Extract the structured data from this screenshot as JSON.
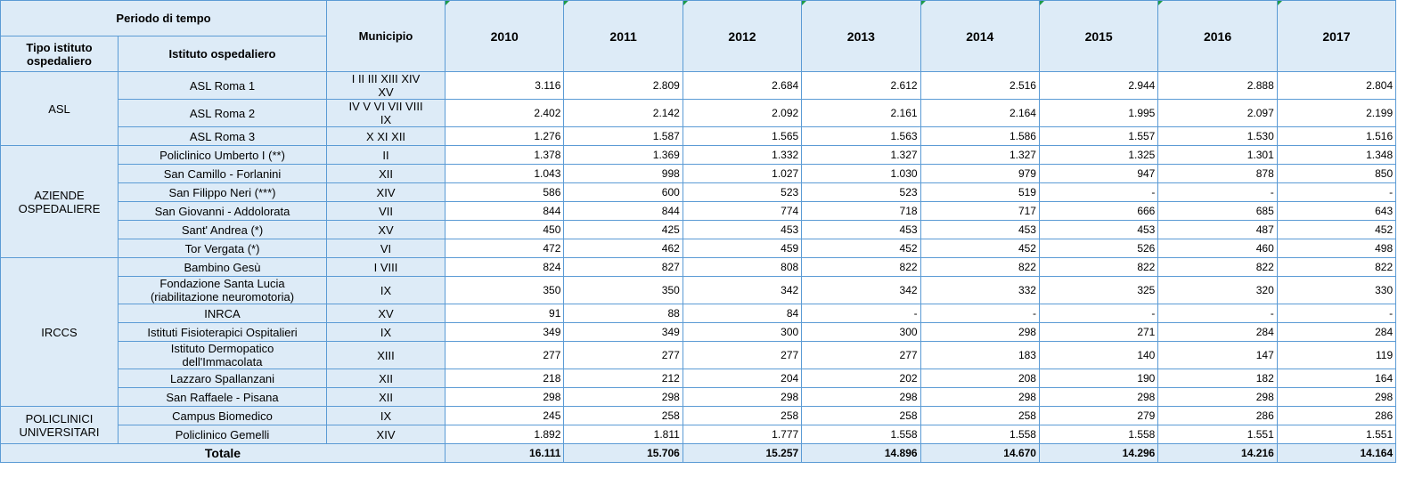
{
  "header": {
    "period": "Periodo di tempo",
    "tipo": "Tipo istituto ospedaliero",
    "istituto": "Istituto ospedaliero",
    "municipio": "Municipio",
    "years": [
      "2010",
      "2011",
      "2012",
      "2013",
      "2014",
      "2015",
      "2016",
      "2017"
    ]
  },
  "groups": [
    {
      "tipo": "ASL",
      "rows": [
        {
          "istituto": "ASL Roma 1",
          "municipio": "I II III XIII XIV XV",
          "values": [
            "3.116",
            "2.809",
            "2.684",
            "2.612",
            "2.516",
            "2.944",
            "2.888",
            "2.804"
          ]
        },
        {
          "istituto": "ASL Roma 2",
          "municipio": "IV V VI VII VIII IX",
          "values": [
            "2.402",
            "2.142",
            "2.092",
            "2.161",
            "2.164",
            "1.995",
            "2.097",
            "2.199"
          ]
        },
        {
          "istituto": "ASL Roma 3",
          "municipio": "X XI XII",
          "values": [
            "1.276",
            "1.587",
            "1.565",
            "1.563",
            "1.586",
            "1.557",
            "1.530",
            "1.516"
          ]
        }
      ]
    },
    {
      "tipo": "AZIENDE OSPEDALIERE",
      "rows": [
        {
          "istituto": "Policlinico Umberto I (**)",
          "municipio": "II",
          "values": [
            "1.378",
            "1.369",
            "1.332",
            "1.327",
            "1.327",
            "1.325",
            "1.301",
            "1.348"
          ]
        },
        {
          "istituto": "San Camillo - Forlanini",
          "municipio": "XII",
          "values": [
            "1.043",
            "998",
            "1.027",
            "1.030",
            "979",
            "947",
            "878",
            "850"
          ]
        },
        {
          "istituto": "San Filippo Neri (***)",
          "municipio": "XIV",
          "values": [
            "586",
            "600",
            "523",
            "523",
            "519",
            "-",
            "-",
            "-"
          ]
        },
        {
          "istituto": "San Giovanni - Addolorata",
          "municipio": "VII",
          "values": [
            "844",
            "844",
            "774",
            "718",
            "717",
            "666",
            "685",
            "643"
          ]
        },
        {
          "istituto": "Sant' Andrea (*)",
          "municipio": "XV",
          "values": [
            "450",
            "425",
            "453",
            "453",
            "453",
            "453",
            "487",
            "452"
          ]
        },
        {
          "istituto": "Tor Vergata (*)",
          "municipio": "VI",
          "values": [
            "472",
            "462",
            "459",
            "452",
            "452",
            "526",
            "460",
            "498"
          ]
        }
      ]
    },
    {
      "tipo": "IRCCS",
      "rows": [
        {
          "istituto": "Bambino Gesù",
          "municipio": "I VIII",
          "values": [
            "824",
            "827",
            "808",
            "822",
            "822",
            "822",
            "822",
            "822"
          ]
        },
        {
          "istituto": "Fondazione Santa Lucia (riabilitazione neuromotoria)",
          "municipio": "IX",
          "values": [
            "350",
            "350",
            "342",
            "342",
            "332",
            "325",
            "320",
            "330"
          ]
        },
        {
          "istituto": "INRCA",
          "municipio": "XV",
          "values": [
            "91",
            "88",
            "84",
            "-",
            "-",
            "-",
            "-",
            "-"
          ]
        },
        {
          "istituto": "Istituti Fisioterapici Ospitalieri",
          "municipio": "IX",
          "values": [
            "349",
            "349",
            "300",
            "300",
            "298",
            "271",
            "284",
            "284"
          ]
        },
        {
          "istituto": "Istituto Dermopatico dell'Immacolata",
          "municipio": "XIII",
          "values": [
            "277",
            "277",
            "277",
            "277",
            "183",
            "140",
            "147",
            "119"
          ]
        },
        {
          "istituto": "Lazzaro Spallanzani",
          "municipio": "XII",
          "values": [
            "218",
            "212",
            "204",
            "202",
            "208",
            "190",
            "182",
            "164"
          ]
        },
        {
          "istituto": "San Raffaele - Pisana",
          "municipio": "XII",
          "values": [
            "298",
            "298",
            "298",
            "298",
            "298",
            "298",
            "298",
            "298"
          ]
        }
      ]
    },
    {
      "tipo": "POLICLINICI UNIVERSITARI",
      "rows": [
        {
          "istituto": "Campus Biomedico",
          "municipio": "IX",
          "values": [
            "245",
            "258",
            "258",
            "258",
            "258",
            "279",
            "286",
            "286"
          ]
        },
        {
          "istituto": "Policlinico Gemelli",
          "municipio": "XIV",
          "values": [
            "1.892",
            "1.811",
            "1.777",
            "1.558",
            "1.558",
            "1.558",
            "1.551",
            "1.551"
          ]
        }
      ]
    }
  ],
  "total": {
    "label": "Totale",
    "values": [
      "16.111",
      "15.706",
      "15.257",
      "14.896",
      "14.670",
      "14.296",
      "14.216",
      "14.164"
    ]
  }
}
